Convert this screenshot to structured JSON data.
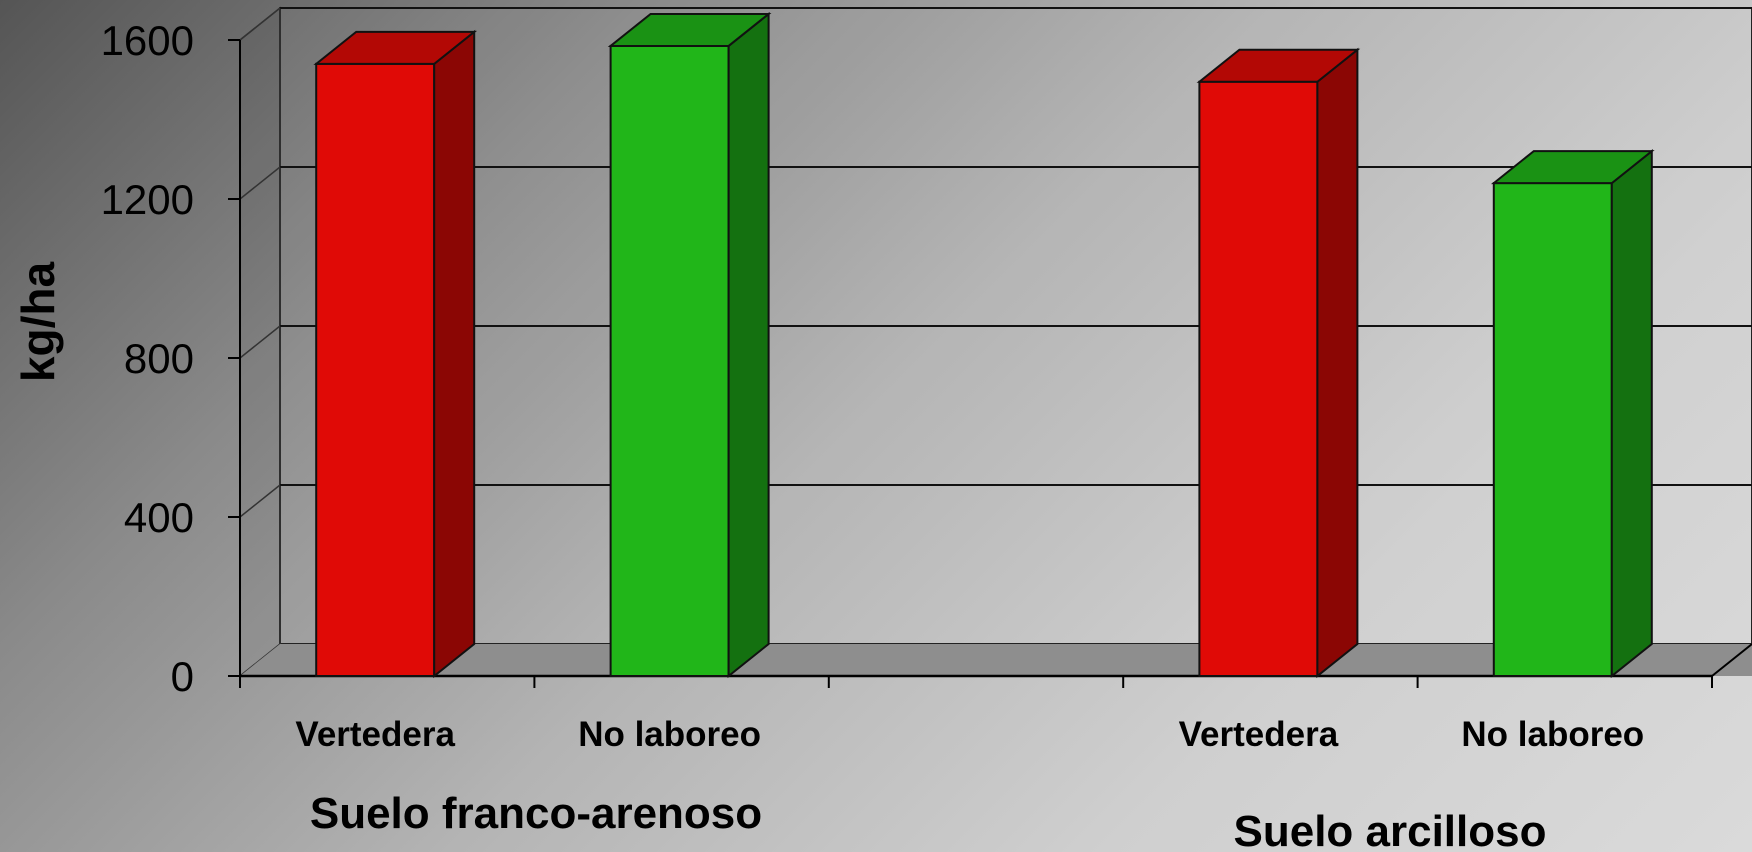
{
  "chart_data": {
    "type": "bar",
    "style": "3d",
    "ylabel": "kg/ha",
    "xlabel": "",
    "ylim": [
      0,
      1600
    ],
    "yticks": [
      0,
      400,
      800,
      1200,
      1600
    ],
    "grid": true,
    "bars": [
      {
        "group": "Suelo franco-arenoso",
        "category": "Vertedera",
        "value": 1540,
        "color": "#e00a06"
      },
      {
        "group": "Suelo franco-arenoso",
        "category": "No laboreo",
        "value": 1585,
        "color": "#21b619"
      },
      {
        "group": "Suelo arcilloso",
        "category": "Vertedera",
        "value": 1495,
        "color": "#e00a06"
      },
      {
        "group": "Suelo arcilloso",
        "category": "No laboreo",
        "value": 1240,
        "color": "#21b619"
      }
    ],
    "groups": [
      "Suelo franco-arenoso",
      "Suelo arcilloso"
    ]
  }
}
